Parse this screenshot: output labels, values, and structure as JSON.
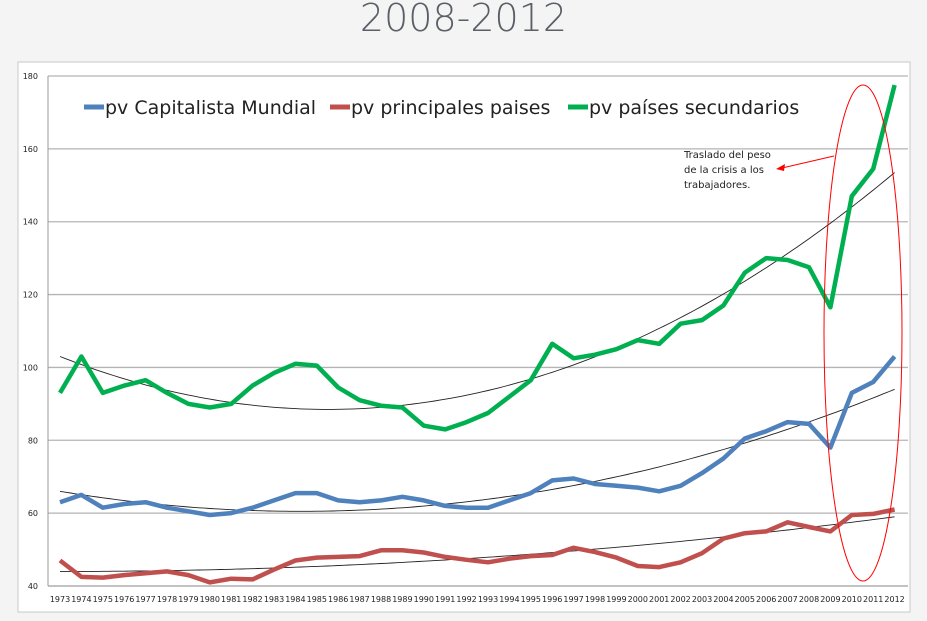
{
  "title": "2008-2012",
  "chart_data": {
    "type": "line",
    "title": "2008-2012",
    "xlabel": "",
    "ylabel": "",
    "ylim": [
      40,
      180
    ],
    "yticks": [
      40,
      60,
      80,
      100,
      120,
      140,
      160,
      180
    ],
    "grid": true,
    "legend_position": "top",
    "x": [
      1973,
      1974,
      1975,
      1976,
      1977,
      1978,
      1979,
      1980,
      1981,
      1982,
      1983,
      1984,
      1985,
      1986,
      1987,
      1988,
      1989,
      1990,
      1991,
      1992,
      1993,
      1994,
      1995,
      1996,
      1997,
      1998,
      1999,
      2000,
      2001,
      2002,
      2003,
      2004,
      2005,
      2006,
      2007,
      2008,
      2009,
      2010,
      2011,
      2012
    ],
    "series": [
      {
        "name": "pv Capitalista Mundial",
        "color": "#4f81bd",
        "values": [
          63,
          65,
          61.5,
          62.5,
          63,
          61.5,
          60.5,
          59.5,
          60,
          61.5,
          63.5,
          65.5,
          65.5,
          63.5,
          63,
          63.5,
          64.5,
          63.5,
          62,
          61.5,
          61.5,
          63.5,
          65.5,
          69,
          69.5,
          68,
          67.5,
          67,
          66,
          67.5,
          71,
          75,
          80.5,
          82.5,
          85,
          84.5,
          78,
          93,
          96,
          103
        ],
        "trend": [
          [
            1973,
            66
          ],
          [
            1984,
            60.5
          ],
          [
            2012,
            94
          ]
        ]
      },
      {
        "name": "pv principales paises",
        "color": "#c0504d",
        "values": [
          47,
          42.5,
          42.3,
          43,
          43.5,
          44,
          43,
          41,
          42,
          41.8,
          44.5,
          47,
          47.8,
          48,
          48.2,
          49.8,
          49.8,
          49.2,
          48,
          47.2,
          46.5,
          47.5,
          48.2,
          48.5,
          50.5,
          49.3,
          47.8,
          45.5,
          45.2,
          46.5,
          49,
          53,
          54.5,
          55,
          57.5,
          56.2,
          55,
          59.5,
          59.8,
          61
        ],
        "trend": [
          [
            1973,
            44
          ],
          [
            1990,
            46.8
          ],
          [
            2012,
            59
          ]
        ]
      },
      {
        "name": "pv países secundarios",
        "color": "#00b050",
        "values": [
          93,
          103,
          93,
          95,
          96.5,
          93,
          90,
          89,
          90,
          95,
          98.5,
          101,
          100.5,
          94.5,
          91,
          89.5,
          89,
          84,
          83,
          85,
          87.5,
          92,
          96.5,
          106.5,
          102.5,
          103.5,
          105,
          107.5,
          106.5,
          112,
          113,
          117,
          126,
          130,
          129.5,
          127.5,
          116.5,
          147,
          154.5,
          177.5
        ],
        "trend": [
          [
            1973,
            103
          ],
          [
            1986,
            88.5
          ],
          [
            2012,
            153.5
          ]
        ]
      }
    ],
    "annotation": {
      "lines": [
        "Traslado del peso",
        "de la crisis a los",
        "trabajadores."
      ],
      "color": "#ff0000"
    }
  }
}
